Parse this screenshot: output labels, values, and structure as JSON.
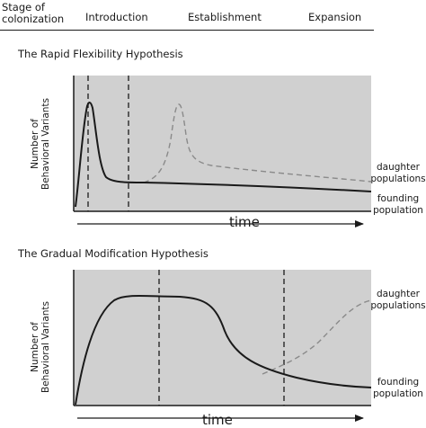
{
  "header": {
    "stage_label": "Stage of\ncolonization",
    "stages": [
      "Introduction",
      "Establishment",
      "Expansion"
    ]
  },
  "panels": [
    {
      "title": "The Rapid Flexibility Hypothesis",
      "ylabel": "Number of\nBehavioral Variants",
      "xlabel": "time",
      "series": [
        {
          "name": "daughter\npopulations",
          "style": "dashed",
          "color": "#8a8a8a"
        },
        {
          "name": "founding\npopulation",
          "style": "solid",
          "color": "#1a1a1a"
        }
      ]
    },
    {
      "title": "The Gradual Modification Hypothesis",
      "ylabel": "Number of\nBehavioral Variants",
      "xlabel": "time",
      "series": [
        {
          "name": "daughter\npopulations",
          "style": "dashed",
          "color": "#8a8a8a"
        },
        {
          "name": "founding\npopulation",
          "style": "solid",
          "color": "#1a1a1a"
        }
      ]
    }
  ],
  "colors": {
    "plot_bg": "#d0d0d0",
    "ink": "#1a1a1a",
    "dashed_curve": "#8a8a8a"
  }
}
